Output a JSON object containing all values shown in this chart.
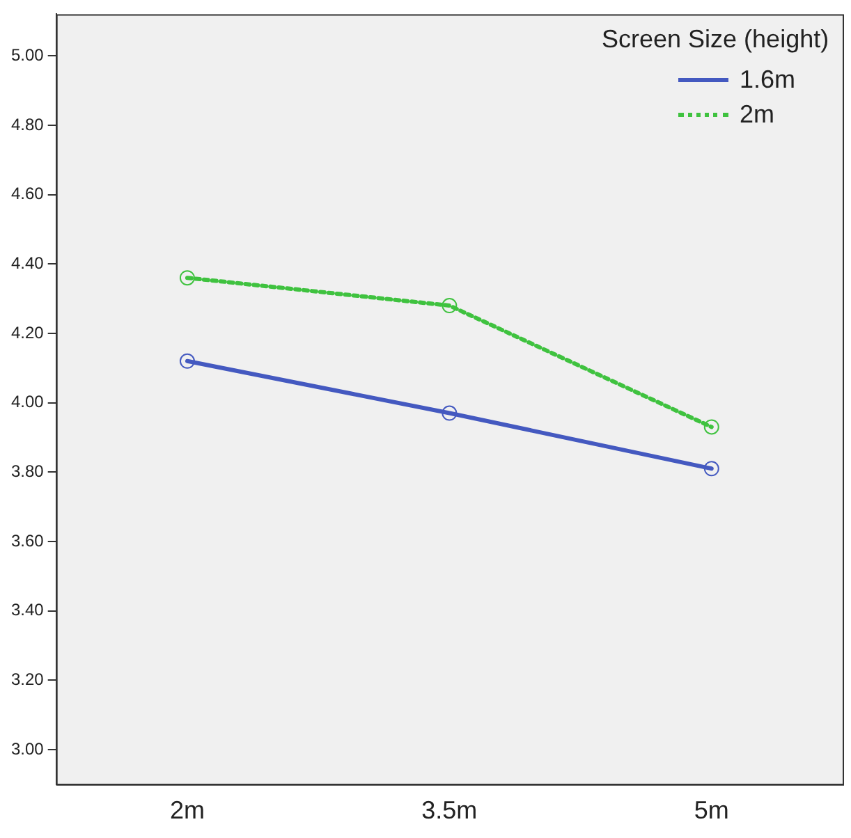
{
  "chart_data": {
    "type": "line",
    "legend_title": "Screen Size (height)",
    "categories": [
      "2m",
      "3.5m",
      "5m"
    ],
    "series": [
      {
        "name": "1.6m",
        "color": "#4459c0",
        "values": [
          4.12,
          3.97,
          3.81
        ],
        "line_style": "solid"
      },
      {
        "name": "2m",
        "color": "#3fc23f",
        "values": [
          4.36,
          4.28,
          3.93
        ],
        "line_style": "dotted"
      }
    ],
    "ylim": [
      2.9,
      5.12
    ],
    "yticks": [
      {
        "value": 3,
        "label": "3.00"
      },
      {
        "value": 3.2,
        "label": "3.20"
      },
      {
        "value": 3.4,
        "label": "3.40"
      },
      {
        "value": 3.6,
        "label": "3.60"
      },
      {
        "value": 3.8,
        "label": "3.80"
      },
      {
        "value": 4,
        "label": "4.00"
      },
      {
        "value": 4.2,
        "label": "4.20"
      },
      {
        "value": 4.4,
        "label": "4.40"
      },
      {
        "value": 4.6,
        "label": "4.60"
      },
      {
        "value": 4.8,
        "label": "4.80"
      },
      {
        "value": 5,
        "label": "5.00"
      }
    ],
    "grid": false,
    "legend": "top right",
    "marker": "circle"
  }
}
